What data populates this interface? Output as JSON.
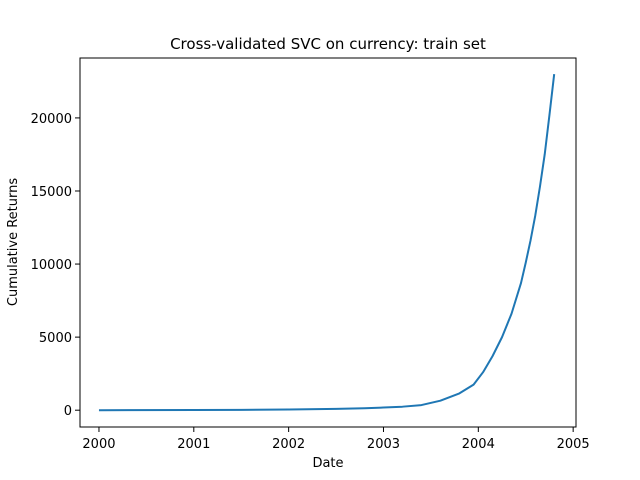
{
  "chart_data": {
    "type": "line",
    "title": "Cross-validated SVC on currency: train set",
    "xlabel": "Date",
    "ylabel": "Cumulative Returns",
    "x_type": "year",
    "xlim": [
      1999.8,
      2005.03
    ],
    "ylim": [
      -1150,
      24100
    ],
    "xticks": [
      2000,
      2001,
      2002,
      2003,
      2004,
      2005
    ],
    "xtick_labels": [
      "2000",
      "2001",
      "2002",
      "2003",
      "2004",
      "2005"
    ],
    "yticks": [
      0,
      5000,
      10000,
      15000,
      20000
    ],
    "ytick_labels": [
      "0",
      "5000",
      "10000",
      "15000",
      "20000"
    ],
    "grid": false,
    "legend": false,
    "series": [
      {
        "color": "#1f77b4",
        "x": [
          2000.0,
          2001.0,
          2001.5,
          2002.0,
          2002.5,
          2002.8,
          2003.0,
          2003.2,
          2003.4,
          2003.6,
          2003.8,
          2003.95,
          2004.05,
          2004.15,
          2004.25,
          2004.35,
          2004.45,
          2004.5,
          2004.55,
          2004.6,
          2004.65,
          2004.7,
          2004.75,
          2004.8
        ],
        "y": [
          0,
          10,
          25,
          50,
          90,
          130,
          180,
          240,
          350,
          650,
          1150,
          1750,
          2600,
          3700,
          5000,
          6600,
          8700,
          10100,
          11600,
          13300,
          15300,
          17500,
          20200,
          23000
        ]
      }
    ]
  }
}
